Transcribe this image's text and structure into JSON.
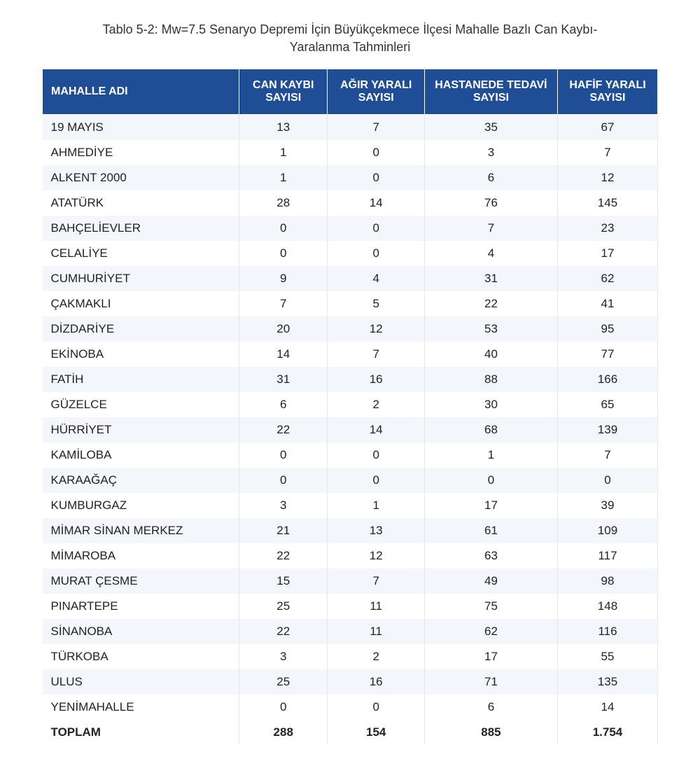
{
  "title": "Tablo 5-2: Mw=7.5 Senaryo Depremi İçin Büyükçekmece İlçesi Mahalle Bazlı Can Kaybı-Yaralanma Tahminleri",
  "table": {
    "type": "table",
    "header_bg": "#1f4e96",
    "header_fg": "#ffffff",
    "row_alt_bg": "#f3f6fb",
    "row_bg": "#ffffff",
    "text_color": "#222222",
    "title_fontsize": 18,
    "cell_fontsize": 17,
    "columns": [
      "MAHALLE ADI",
      "CAN KAYBI SAYISI",
      "AĞIR YARALI SAYISI",
      "HASTANEDE TEDAVİ SAYISI",
      "HAFİF YARALI SAYISI"
    ],
    "rows": [
      [
        "19 MAYIS",
        "13",
        "7",
        "35",
        "67"
      ],
      [
        "AHMEDİYE",
        "1",
        "0",
        "3",
        "7"
      ],
      [
        "ALKENT 2000",
        "1",
        "0",
        "6",
        "12"
      ],
      [
        "ATATÜRK",
        "28",
        "14",
        "76",
        "145"
      ],
      [
        "BAHÇELİEVLER",
        "0",
        "0",
        "7",
        "23"
      ],
      [
        "CELALİYE",
        "0",
        "0",
        "4",
        "17"
      ],
      [
        "CUMHURİYET",
        "9",
        "4",
        "31",
        "62"
      ],
      [
        "ÇAKMAKLI",
        "7",
        "5",
        "22",
        "41"
      ],
      [
        "DİZDARİYE",
        "20",
        "12",
        "53",
        "95"
      ],
      [
        "EKİNOBA",
        "14",
        "7",
        "40",
        "77"
      ],
      [
        "FATİH",
        "31",
        "16",
        "88",
        "166"
      ],
      [
        "GÜZELCE",
        "6",
        "2",
        "30",
        "65"
      ],
      [
        "HÜRRİYET",
        "22",
        "14",
        "68",
        "139"
      ],
      [
        "KAMİLOBA",
        "0",
        "0",
        "1",
        "7"
      ],
      [
        "KARAAĞAÇ",
        "0",
        "0",
        "0",
        "0"
      ],
      [
        "KUMBURGAZ",
        "3",
        "1",
        "17",
        "39"
      ],
      [
        "MİMAR SİNAN MERKEZ",
        "21",
        "13",
        "61",
        "109"
      ],
      [
        "MİMAROBA",
        "22",
        "12",
        "63",
        "117"
      ],
      [
        "MURAT ÇESME",
        "15",
        "7",
        "49",
        "98"
      ],
      [
        "PINARTEPE",
        "25",
        "11",
        "75",
        "148"
      ],
      [
        "SİNANOBA",
        "22",
        "11",
        "62",
        "116"
      ],
      [
        "TÜRKOBA",
        "3",
        "2",
        "17",
        "55"
      ],
      [
        "ULUS",
        "25",
        "16",
        "71",
        "135"
      ],
      [
        "YENİMAHALLE",
        "0",
        "0",
        "6",
        "14"
      ]
    ],
    "total": [
      "TOPLAM",
      "288",
      "154",
      "885",
      "1.754"
    ]
  }
}
